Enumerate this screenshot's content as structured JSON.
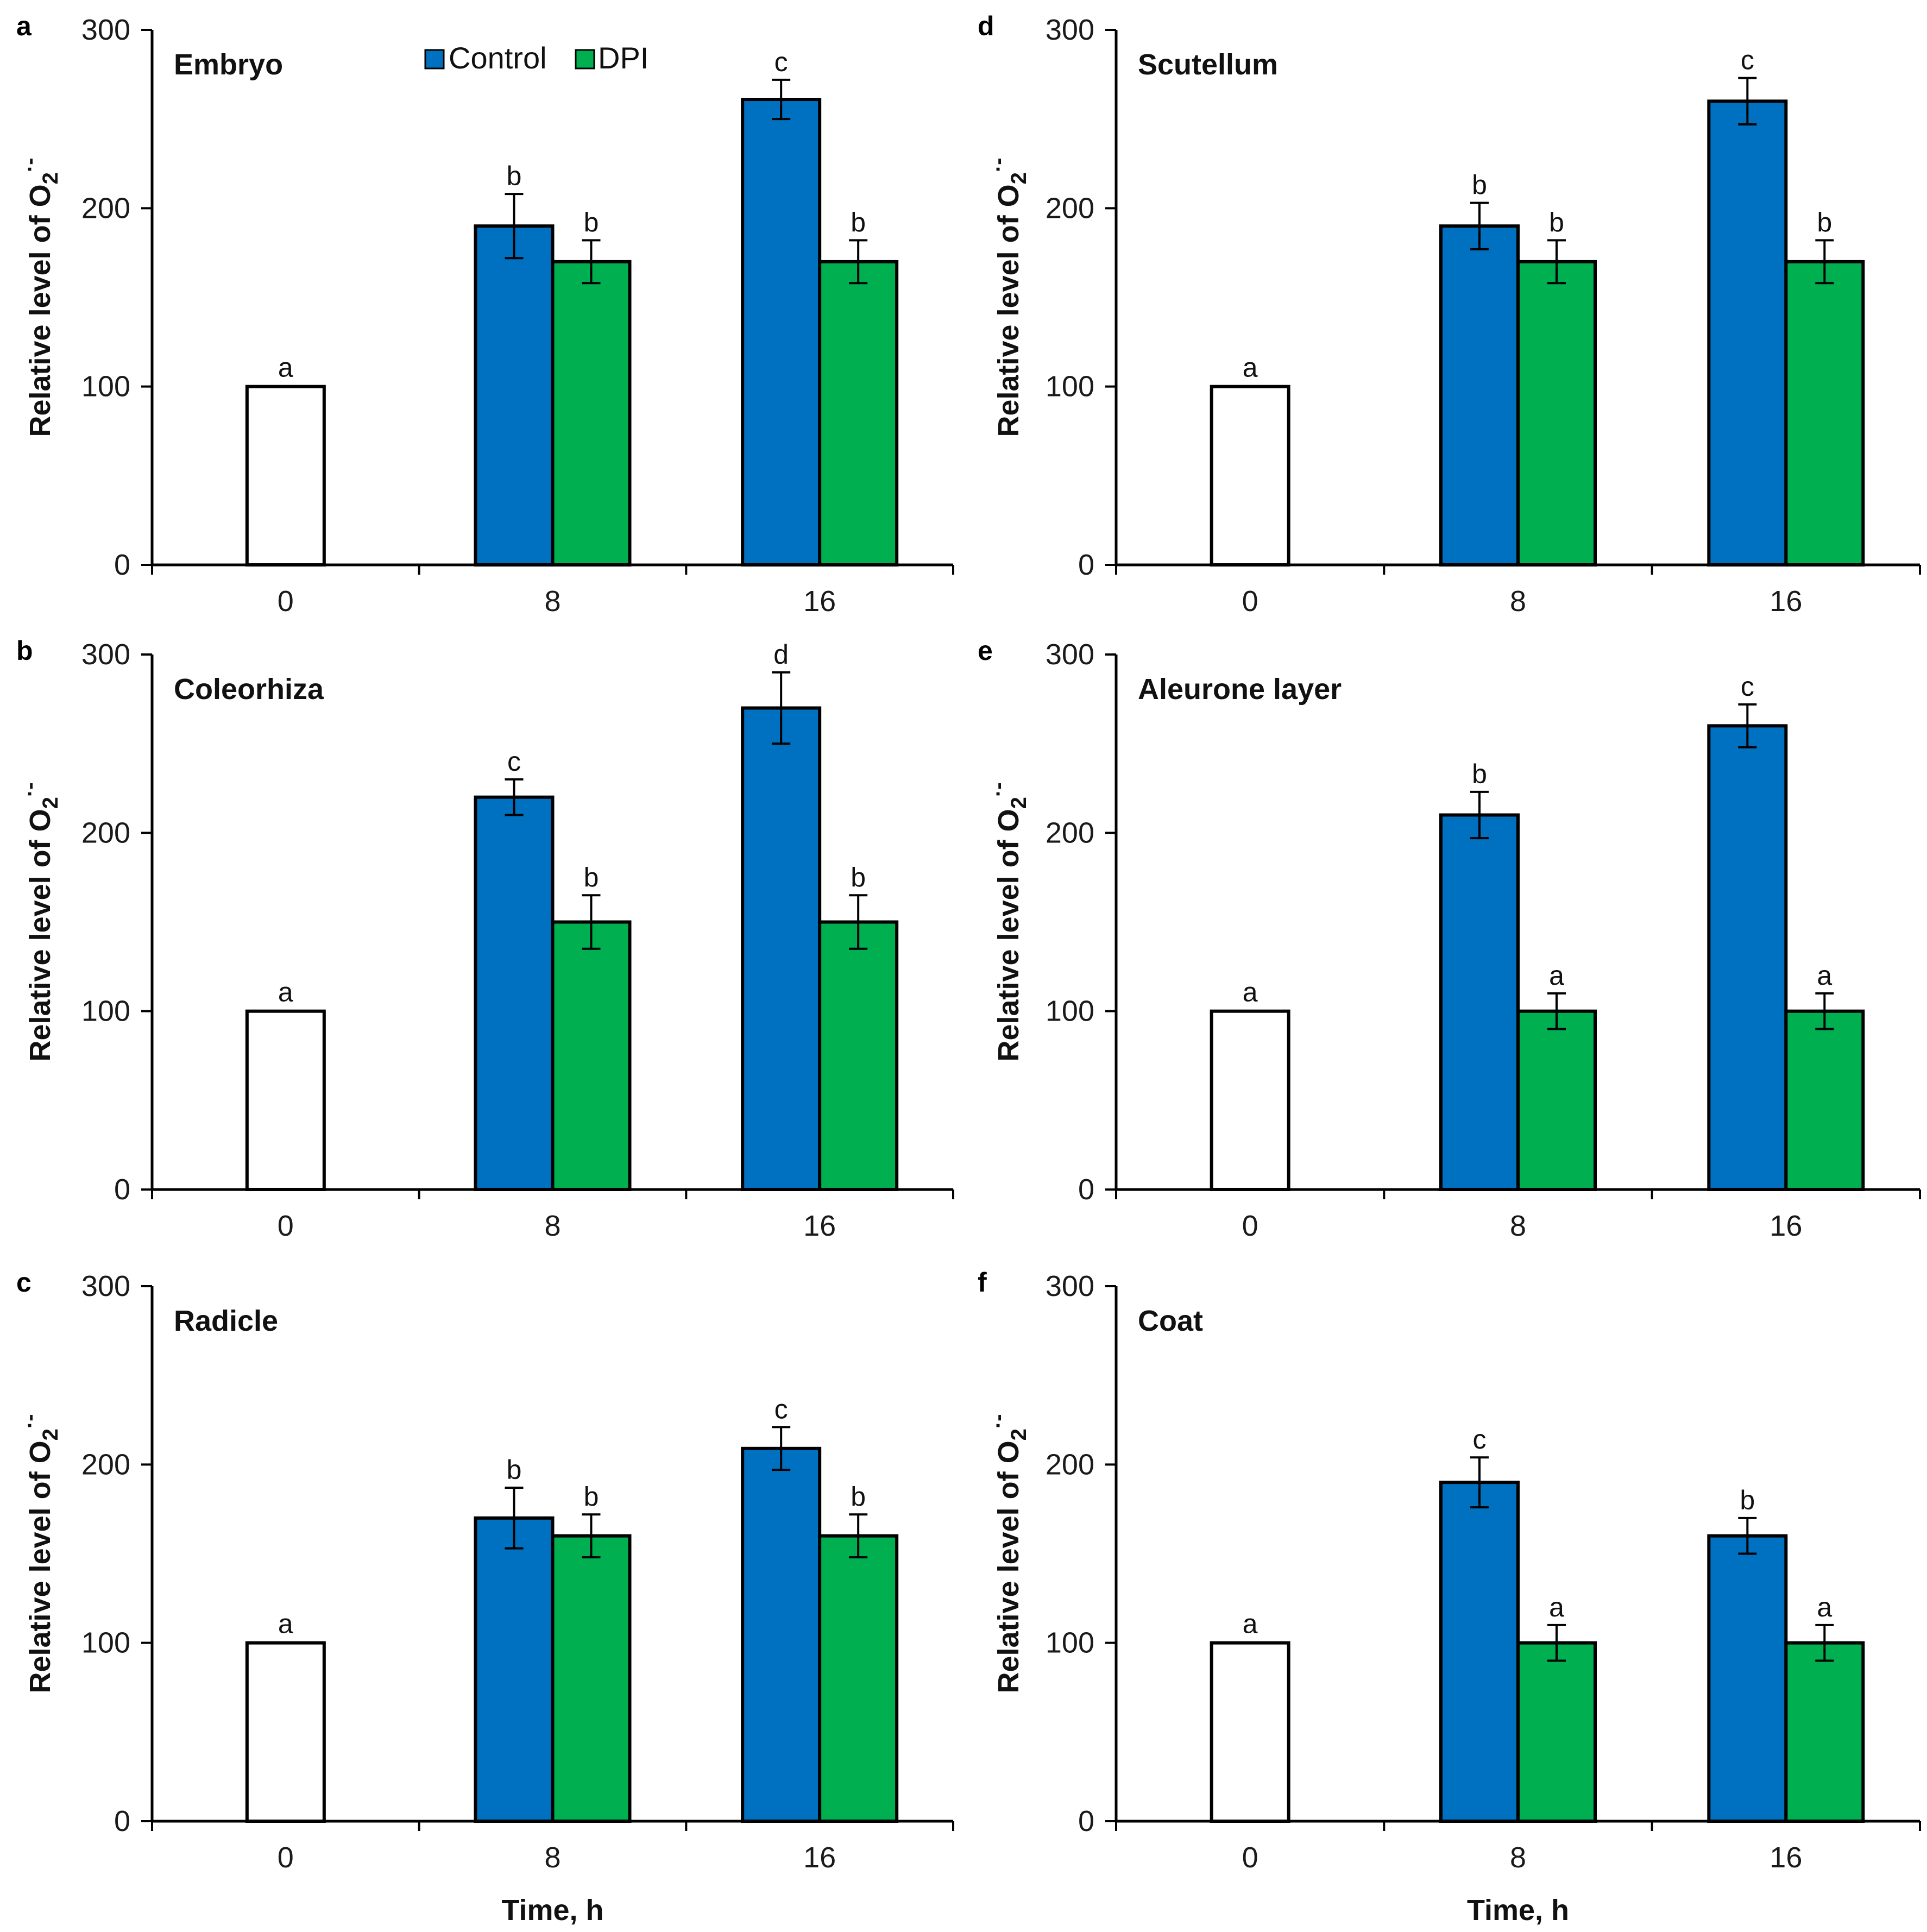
{
  "colors": {
    "control": "#0070C0",
    "dpi": "#00B050",
    "baseline": "#ffffff",
    "stroke": "#000000"
  },
  "legend": {
    "control": "Control",
    "dpi": "DPI"
  },
  "ylabel": {
    "main": "Relative level of O",
    "sub": "2",
    "sup": "·-"
  },
  "xlabel": "Time, h",
  "chart_data": [
    {
      "type": "bar",
      "letter": "a",
      "title": "Embryo",
      "ylim": [
        0,
        300
      ],
      "yticks": [
        0,
        100,
        200,
        300
      ],
      "categories": [
        "0",
        "8",
        "16"
      ],
      "baseline": {
        "value": 100,
        "label": "a"
      },
      "series": [
        {
          "name": "Control",
          "values": [
            null,
            190,
            261
          ],
          "errors": [
            null,
            18,
            11
          ],
          "labels": [
            null,
            "b",
            "c"
          ]
        },
        {
          "name": "DPI",
          "values": [
            null,
            170,
            170
          ],
          "errors": [
            null,
            12,
            12
          ],
          "labels": [
            null,
            "b",
            "b"
          ]
        }
      ]
    },
    {
      "type": "bar",
      "letter": "b",
      "title": "Coleorhiza",
      "ylim": [
        0,
        300
      ],
      "yticks": [
        0,
        100,
        200,
        300
      ],
      "categories": [
        "0",
        "8",
        "16"
      ],
      "baseline": {
        "value": 100,
        "label": "a"
      },
      "series": [
        {
          "name": "Control",
          "values": [
            null,
            220,
            270
          ],
          "errors": [
            null,
            10,
            20
          ],
          "labels": [
            null,
            "c",
            "d"
          ]
        },
        {
          "name": "DPI",
          "values": [
            null,
            150,
            150
          ],
          "errors": [
            null,
            15,
            15
          ],
          "labels": [
            null,
            "b",
            "b"
          ]
        }
      ]
    },
    {
      "type": "bar",
      "letter": "c",
      "title": "Radicle",
      "ylim": [
        0,
        300
      ],
      "yticks": [
        0,
        100,
        200,
        300
      ],
      "categories": [
        "0",
        "8",
        "16"
      ],
      "baseline": {
        "value": 100,
        "label": "a"
      },
      "series": [
        {
          "name": "Control",
          "values": [
            null,
            170,
            209
          ],
          "errors": [
            null,
            17,
            12
          ],
          "labels": [
            null,
            "b",
            "c"
          ]
        },
        {
          "name": "DPI",
          "values": [
            null,
            160,
            160
          ],
          "errors": [
            null,
            12,
            12
          ],
          "labels": [
            null,
            "b",
            "b"
          ]
        }
      ]
    },
    {
      "type": "bar",
      "letter": "d",
      "title": "Scutellum",
      "ylim": [
        0,
        300
      ],
      "yticks": [
        0,
        100,
        200,
        300
      ],
      "categories": [
        "0",
        "8",
        "16"
      ],
      "baseline": {
        "value": 100,
        "label": "a"
      },
      "series": [
        {
          "name": "Control",
          "values": [
            null,
            190,
            260
          ],
          "errors": [
            null,
            13,
            13
          ],
          "labels": [
            null,
            "b",
            "c"
          ]
        },
        {
          "name": "DPI",
          "values": [
            null,
            170,
            170
          ],
          "errors": [
            null,
            12,
            12
          ],
          "labels": [
            null,
            "b",
            "b"
          ]
        }
      ]
    },
    {
      "type": "bar",
      "letter": "e",
      "title": "Aleurone layer",
      "ylim": [
        0,
        300
      ],
      "yticks": [
        0,
        100,
        200,
        300
      ],
      "categories": [
        "0",
        "8",
        "16"
      ],
      "baseline": {
        "value": 100,
        "label": "a"
      },
      "series": [
        {
          "name": "Control",
          "values": [
            null,
            210,
            260
          ],
          "errors": [
            null,
            13,
            12
          ],
          "labels": [
            null,
            "b",
            "c"
          ]
        },
        {
          "name": "DPI",
          "values": [
            null,
            100,
            100
          ],
          "errors": [
            null,
            10,
            10
          ],
          "labels": [
            null,
            "a",
            "a"
          ]
        }
      ]
    },
    {
      "type": "bar",
      "letter": "f",
      "title": "Coat",
      "ylim": [
        0,
        300
      ],
      "yticks": [
        0,
        100,
        200,
        300
      ],
      "categories": [
        "0",
        "8",
        "16"
      ],
      "baseline": {
        "value": 100,
        "label": "a"
      },
      "series": [
        {
          "name": "Control",
          "values": [
            null,
            190,
            160
          ],
          "errors": [
            null,
            14,
            10
          ],
          "labels": [
            null,
            "c",
            "b"
          ]
        },
        {
          "name": "DPI",
          "values": [
            null,
            100,
            100
          ],
          "errors": [
            null,
            10,
            10
          ],
          "labels": [
            null,
            "a",
            "a"
          ]
        }
      ]
    }
  ]
}
